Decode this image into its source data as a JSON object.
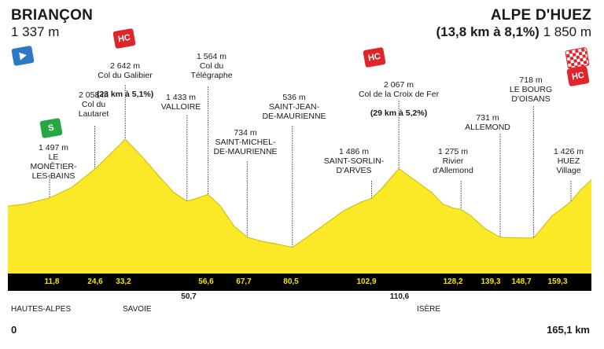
{
  "start": {
    "name": "BRIANÇON",
    "alt": "1 337 m"
  },
  "finish": {
    "name": "ALPE D'HUEZ",
    "climb": "(13,8 km à 8,1%)",
    "alt": "1 850 m"
  },
  "start_distance": "0",
  "total_distance": "165,1 km",
  "badges": {
    "hc": "HC",
    "sprint": "S"
  },
  "departments": [
    "HAUTES-ALPES",
    "SAVOIE",
    "ISÈRE"
  ],
  "colors": {
    "profile": "#fbe928",
    "profile_stroke": "#c9bb00",
    "band": "#000000",
    "km_text": "#f5e400",
    "hc": "#e1232a",
    "sprint": "#27a844",
    "start": "#2b78c5"
  },
  "points": [
    {
      "km": "11,8",
      "label": "1 497 m\nLE MONÊTIER-\nLES-BAINS"
    },
    {
      "km": "24,6",
      "label": "2 058 m\nCol du\nLautaret"
    },
    {
      "km": "33,2",
      "label": "2 642 m\nCol du Galibier",
      "extra": "(23 km à 5,1%)"
    },
    {
      "km": "50,7",
      "label": "1 433 m\nVALLOIRE"
    },
    {
      "km": "56,6",
      "label": "1 564 m\nCol du\nTélégraphe"
    },
    {
      "km": "67,7",
      "label": "734 m\nSAINT-MICHEL-\nDE-MAURIENNE"
    },
    {
      "km": "80,5",
      "label": "536 m\nSAINT-JEAN-\nDE-MAURIENNE"
    },
    {
      "km": "102,9",
      "label": "1 486 m\nSAINT-SORLIN-\nD'ARVES"
    },
    {
      "km": "110,6",
      "label": "2 067 m\nCol de la Croix de Fer",
      "extra": "(29 km à 5,2%)"
    },
    {
      "km": "128,2",
      "label": "1 275 m\nRivier\nd'Allemond"
    },
    {
      "km": "139,3",
      "label": "731 m\nALLEMOND"
    },
    {
      "km": "148,7",
      "label": "718 m\nLE BOURG\nD'OISANS"
    },
    {
      "km": "159,3",
      "label": "1 426 m\nHUEZ\nVillage"
    }
  ],
  "chart_data": {
    "type": "area",
    "xlabel": "",
    "ylabel": "",
    "x_unit": "km",
    "y_unit": "m",
    "xlim": [
      0,
      165.1
    ],
    "series": [
      {
        "x": [
          0,
          5,
          11.8,
          18,
          24.6,
          29,
          33.2,
          38,
          43,
          47,
          50.7,
          53,
          56.6,
          60,
          64,
          67.7,
          72,
          76,
          80.5,
          85,
          90,
          95,
          100,
          102.9,
          106,
          110.6,
          113,
          116,
          120,
          123,
          126,
          128.2,
          131,
          135,
          139.3,
          142,
          145,
          148.7,
          151,
          154,
          157,
          159.3,
          162,
          165.1
        ],
        "y": [
          1337,
          1380,
          1497,
          1700,
          2058,
          2350,
          2642,
          2300,
          1900,
          1600,
          1433,
          1480,
          1564,
          1350,
          950,
          734,
          650,
          600,
          536,
          750,
          1000,
          1250,
          1420,
          1486,
          1700,
          2067,
          1950,
          1800,
          1600,
          1380,
          1300,
          1275,
          1150,
          900,
          731,
          725,
          720,
          718,
          900,
          1150,
          1300,
          1426,
          1650,
          1850
        ]
      }
    ]
  }
}
